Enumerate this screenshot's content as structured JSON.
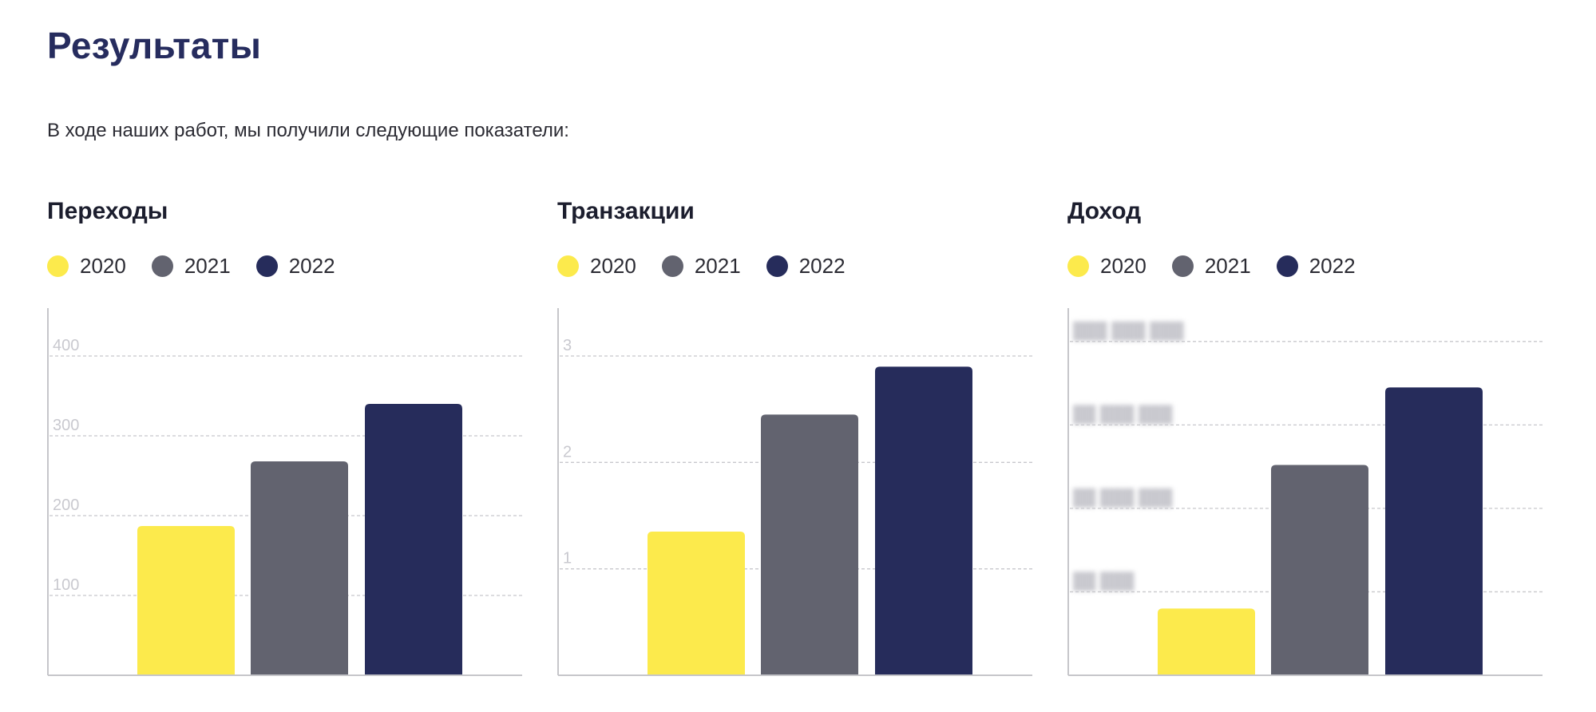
{
  "page": {
    "title": "Результаты",
    "intro": "В ходе наших работ, мы получили следующие показатели:"
  },
  "colors": {
    "2020": "#fcea4c",
    "2021": "#62636f",
    "2022": "#262c5b",
    "grid": "#c8c8cc",
    "axis": "#c6c6ca"
  },
  "chart_data": [
    {
      "type": "bar",
      "title": "Переходы",
      "categories": [
        "2020",
        "2021",
        "2022"
      ],
      "values": [
        187,
        268,
        340
      ],
      "ylim": [
        0,
        460
      ],
      "yticks": [
        100,
        200,
        300,
        400
      ],
      "ytick_labels": [
        "100",
        "200",
        "300",
        "400"
      ],
      "grid": true,
      "legend": "top-left"
    },
    {
      "type": "bar",
      "title": "Транзакции",
      "categories": [
        "2020",
        "2021",
        "2022"
      ],
      "values": [
        1.35,
        2.45,
        2.9
      ],
      "ylim": [
        0,
        3.45
      ],
      "yticks": [
        1,
        2,
        3
      ],
      "ytick_labels": [
        "1",
        "2",
        "3"
      ],
      "grid": true,
      "legend": "top-left"
    },
    {
      "type": "bar",
      "title": "Доход",
      "categories": [
        "2020",
        "2021",
        "2022"
      ],
      "values": [
        0.8,
        2.52,
        3.45
      ],
      "ylim": [
        0,
        4.4
      ],
      "yticks": [
        1,
        2,
        3,
        4
      ],
      "ytick_labels": [
        "██ ███",
        "██ ███ ███",
        "██ ███ ███",
        "███ ███ ███"
      ],
      "ytick_blurred": true,
      "grid": true,
      "legend": "top-left"
    }
  ]
}
